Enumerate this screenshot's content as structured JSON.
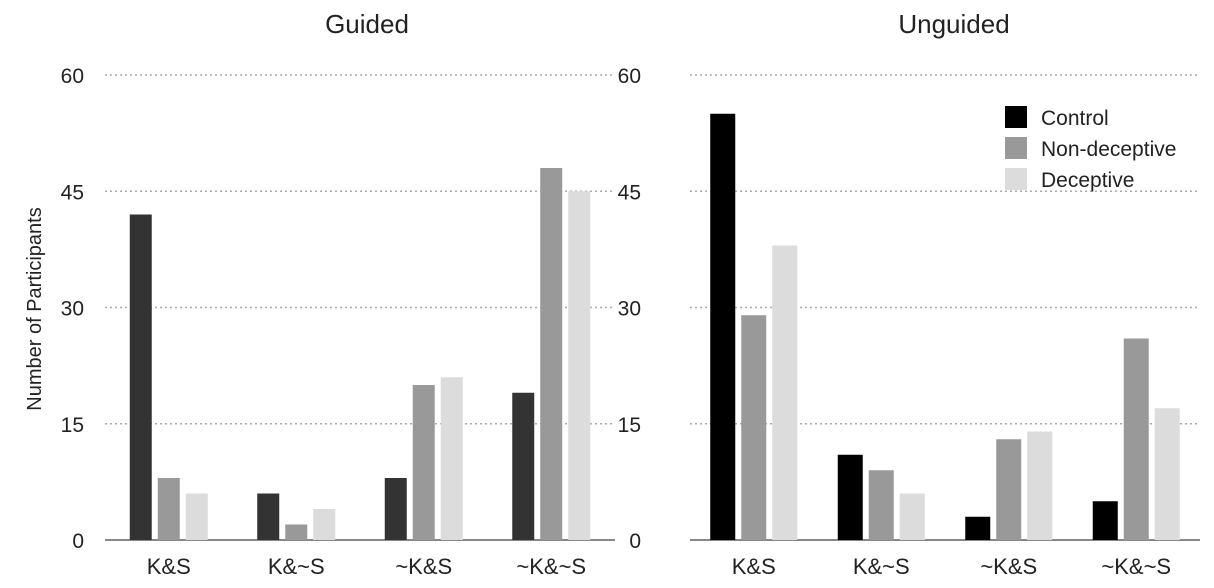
{
  "chart_data": [
    {
      "type": "bar",
      "title": "Guided",
      "ylabel": "Number of Participants",
      "xlabel": "",
      "categories": [
        "K&S",
        "K&~S",
        "~K&S",
        "~K&~S"
      ],
      "ylim": [
        0,
        60
      ],
      "yticks": [
        "0",
        "15",
        "30",
        "45",
        "60"
      ],
      "grid": true,
      "series": [
        {
          "name": "Control",
          "values": [
            42,
            6,
            8,
            19
          ]
        },
        {
          "name": "Non-deceptive",
          "values": [
            8,
            2,
            20,
            48
          ]
        },
        {
          "name": "Deceptive",
          "values": [
            6,
            4,
            21,
            45
          ]
        }
      ]
    },
    {
      "type": "bar",
      "title": "Unguided",
      "ylabel": "",
      "xlabel": "",
      "categories": [
        "K&S",
        "K&~S",
        "~K&S",
        "~K&~S"
      ],
      "ylim": [
        0,
        60
      ],
      "yticks": [
        "0",
        "15",
        "30",
        "45",
        "60"
      ],
      "grid": true,
      "legend": "top-right",
      "series": [
        {
          "name": "Control",
          "values": [
            55,
            11,
            3,
            5
          ]
        },
        {
          "name": "Non-deceptive",
          "values": [
            29,
            9,
            13,
            26
          ]
        },
        {
          "name": "Deceptive",
          "values": [
            38,
            6,
            14,
            17
          ]
        }
      ]
    }
  ],
  "colors": {
    "guided": [
      "#333333",
      "#999999",
      "#dcdcdc"
    ],
    "unguided": [
      "#000000",
      "#999999",
      "#dcdcdc"
    ],
    "grid": "#aaaaaa",
    "axis": "#888888"
  }
}
